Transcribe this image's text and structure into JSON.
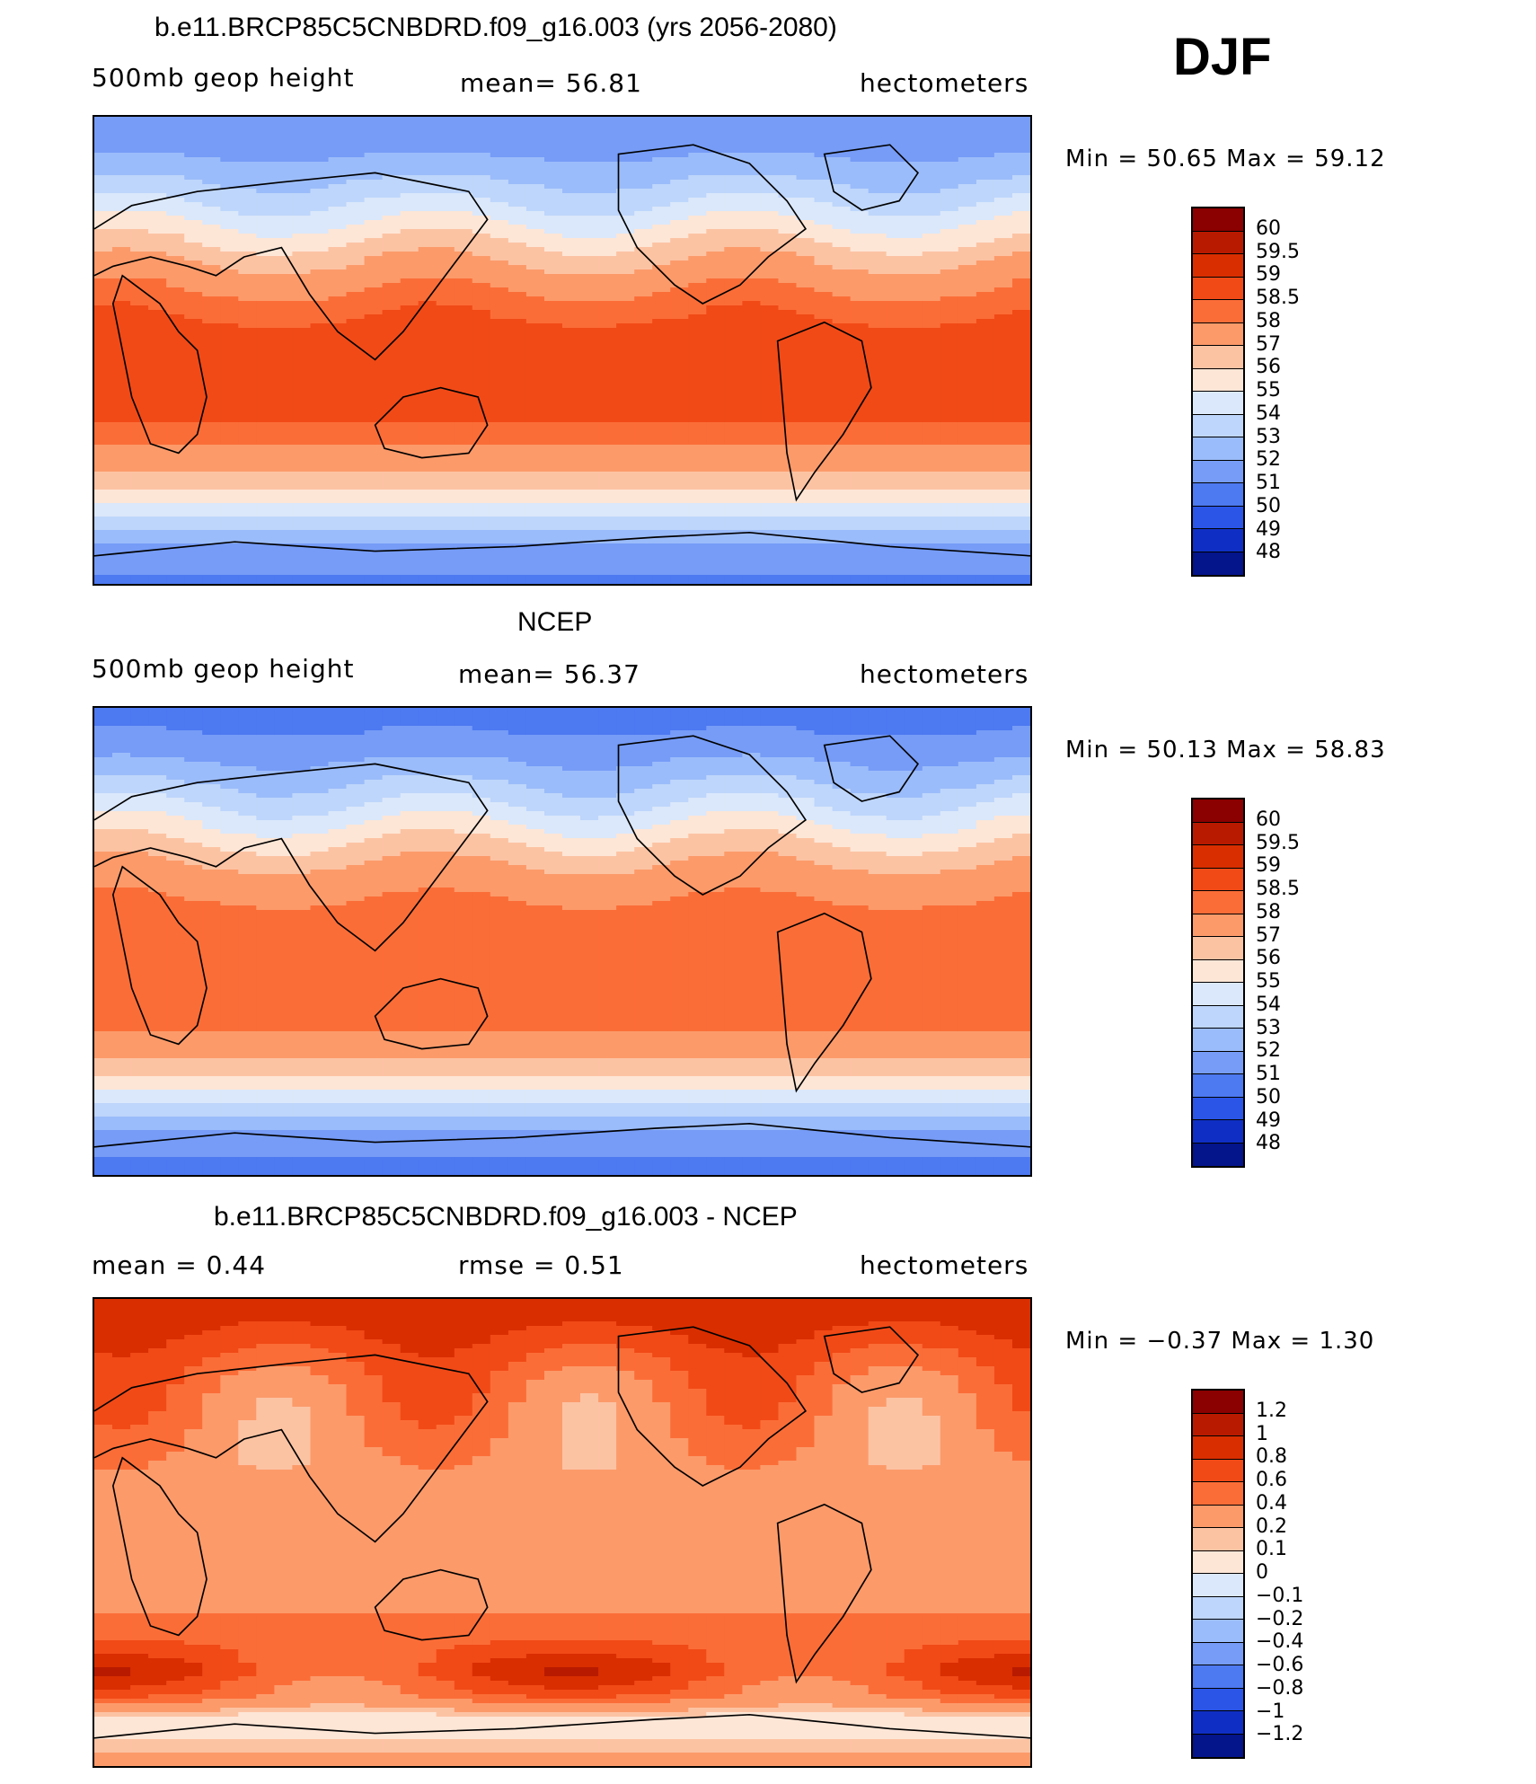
{
  "season": "DJF",
  "chart_data": [
    {
      "type": "heatmap",
      "title": "b.e11.BRCP85C5CNBDRD.f09_g16.003 (yrs 2056-2080)",
      "left_label": "500mb geop height",
      "center_label": "mean=  56.81",
      "units": "hectometers",
      "minmax": "Min =  50.65 Max =  59.12",
      "min": 50.65,
      "max": 59.12,
      "mean": 56.81,
      "colorbar": {
        "labels": [
          "60",
          "59.5",
          "59",
          "58.5",
          "58",
          "57",
          "56",
          "55",
          "54",
          "53",
          "52",
          "51",
          "50",
          "49",
          "48"
        ],
        "colors": [
          "#8b0000",
          "#b81a00",
          "#d92e00",
          "#f14a17",
          "#fb6d37",
          "#fc9a6a",
          "#fcc3a3",
          "#fde6d6",
          "#dbe8fb",
          "#bed6fb",
          "#9bbcfa",
          "#769cf7",
          "#4d79f1",
          "#2a55e6",
          "#0f2fc4",
          "#04148a"
        ]
      },
      "lat_profile": [
        51.2,
        51.5,
        52.3,
        53.3,
        54.4,
        55.6,
        56.8,
        57.7,
        58.3,
        58.6,
        58.7,
        58.8,
        58.9,
        58.6,
        58.1,
        57.3,
        56.0,
        54.2,
        52.5,
        51.3,
        50.9
      ]
    },
    {
      "type": "heatmap",
      "title": "NCEP",
      "left_label": "500mb geop height",
      "center_label": "mean=  56.37",
      "units": "hectometers",
      "minmax": "Min =  50.13 Max =  58.83",
      "min": 50.13,
      "max": 58.83,
      "mean": 56.37,
      "colorbar": {
        "labels": [
          "60",
          "59.5",
          "59",
          "58.5",
          "58",
          "57",
          "56",
          "55",
          "54",
          "53",
          "52",
          "51",
          "50",
          "49",
          "48"
        ],
        "colors": [
          "#8b0000",
          "#b81a00",
          "#d92e00",
          "#f14a17",
          "#fb6d37",
          "#fc9a6a",
          "#fcc3a3",
          "#fde6d6",
          "#dbe8fb",
          "#bed6fb",
          "#9bbcfa",
          "#769cf7",
          "#4d79f1",
          "#2a55e6",
          "#0f2fc4",
          "#04148a"
        ]
      },
      "lat_profile": [
        50.8,
        51.0,
        51.8,
        52.8,
        53.9,
        55.1,
        56.3,
        57.3,
        57.9,
        58.3,
        58.4,
        58.4,
        58.5,
        58.4,
        57.9,
        57.1,
        55.8,
        53.9,
        52.1,
        51.1,
        50.7
      ]
    },
    {
      "type": "heatmap",
      "title": "b.e11.BRCP85C5CNBDRD.f09_g16.003 - NCEP",
      "left_label": "mean =    0.44",
      "center_label": "rmse =    0.51",
      "units": "hectometers",
      "minmax": "Min =  −0.37 Max =    1.30",
      "min": -0.37,
      "max": 1.3,
      "mean": 0.44,
      "rmse": 0.51,
      "colorbar": {
        "labels": [
          "1.2",
          "1",
          "0.8",
          "0.6",
          "0.4",
          "0.2",
          "0.1",
          "0",
          "−0.1",
          "−0.2",
          "−0.4",
          "−0.6",
          "−0.8",
          "−1",
          "−1.2"
        ],
        "colors": [
          "#8b0000",
          "#b81a00",
          "#d92e00",
          "#f14a17",
          "#fb6d37",
          "#fc9a6a",
          "#fcc3a3",
          "#fde6d6",
          "#dbe8fb",
          "#bed6fb",
          "#9bbcfa",
          "#769cf7",
          "#4d79f1",
          "#2a55e6",
          "#0f2fc4",
          "#04148a"
        ]
      },
      "lat_profile": [
        0.9,
        0.85,
        0.7,
        0.55,
        0.45,
        0.4,
        0.35,
        0.3,
        0.3,
        0.3,
        0.3,
        0.3,
        0.3,
        0.35,
        0.45,
        0.6,
        0.75,
        0.5,
        0.05,
        0.1,
        0.3
      ]
    }
  ]
}
